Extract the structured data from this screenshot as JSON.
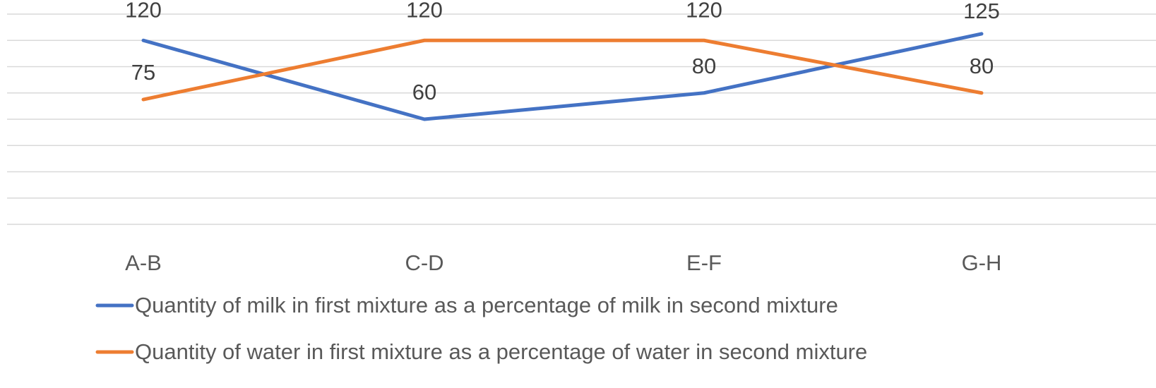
{
  "chart_data": {
    "type": "line",
    "categories": [
      "A-B",
      "C-D",
      "E-F",
      "G-H"
    ],
    "series": [
      {
        "name": "Quantity of milk in first mixture as a percentage of milk in second mixture",
        "color": "#4472c4",
        "values": [
          120,
          60,
          80,
          125
        ],
        "data_labels": [
          "120",
          "60",
          "80",
          "125"
        ]
      },
      {
        "name": "Quantity of water in first mixture as a percentage of water in second mixture",
        "color": "#ed7d31",
        "values": [
          75,
          120,
          120,
          80
        ],
        "data_labels": [
          "75",
          "120",
          "120",
          "80"
        ]
      }
    ],
    "ylim": [
      -20,
      140
    ],
    "grid": true,
    "legend_position": "bottom"
  }
}
